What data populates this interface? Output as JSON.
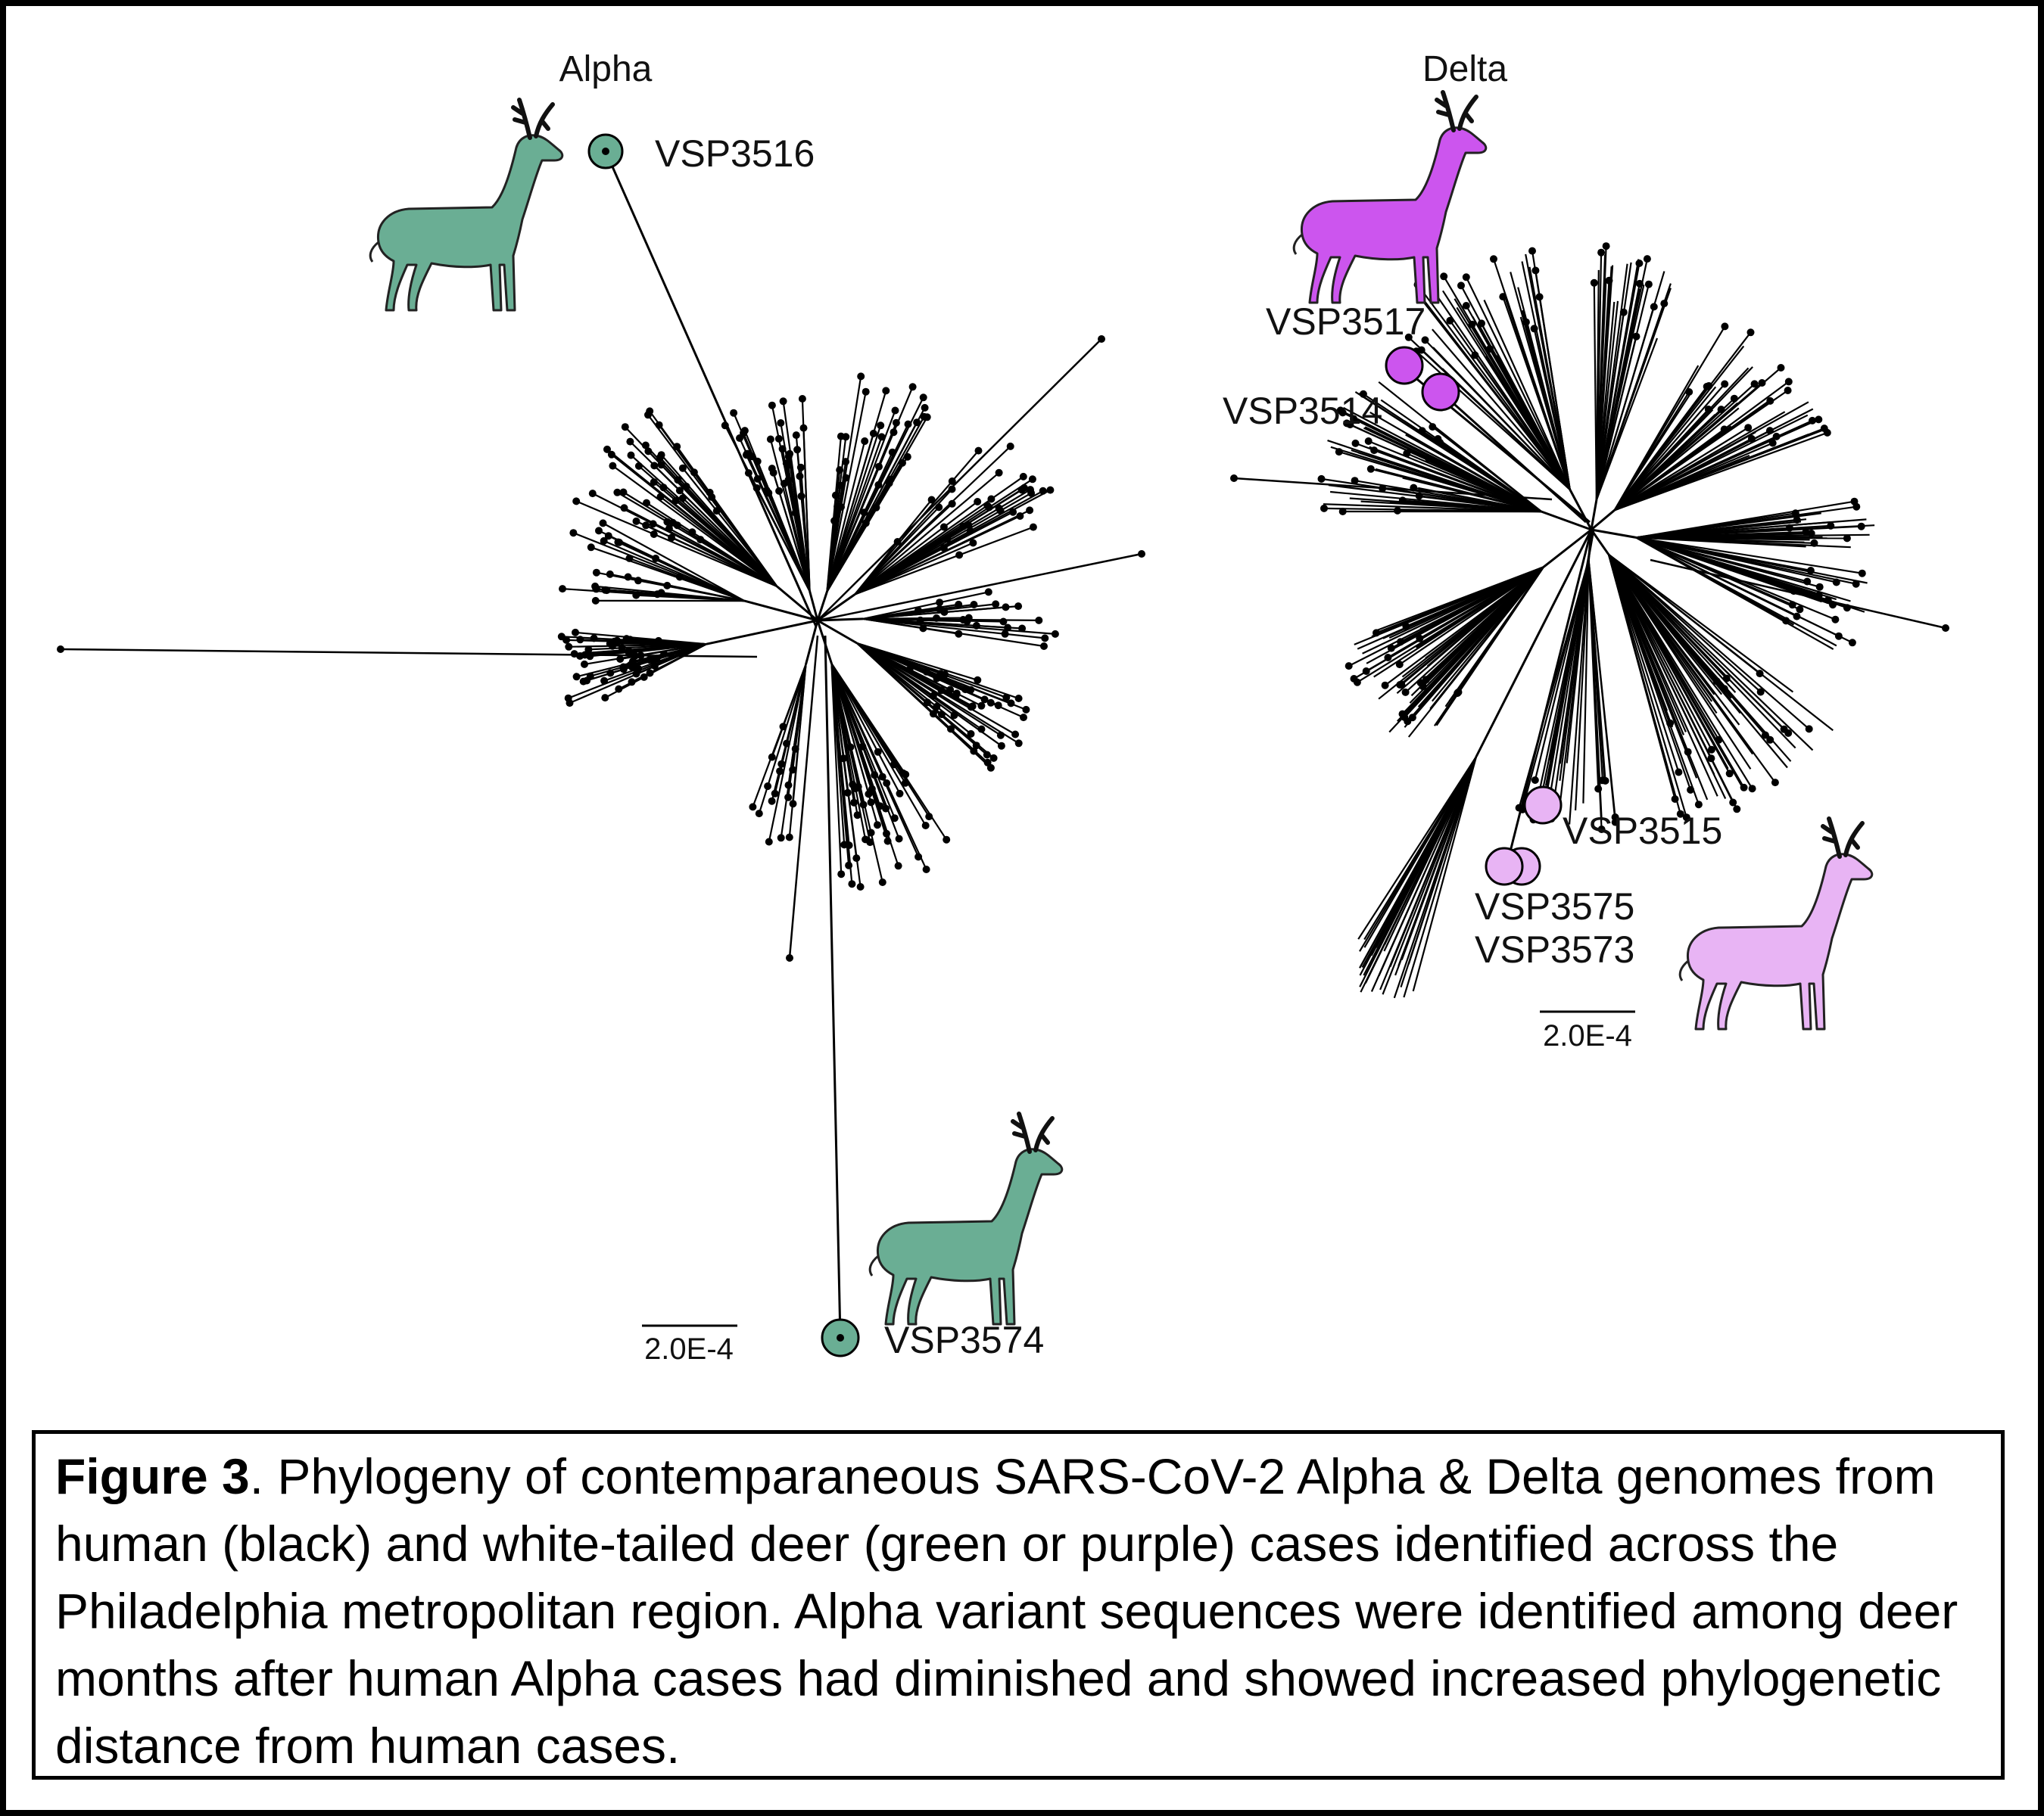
{
  "figure": {
    "panels": [
      {
        "id": "alpha",
        "title": "Alpha",
        "scale_label": "2.0E-4",
        "deer_color": "#6aae94",
        "deer_samples": [
          "VSP3516",
          "VSP3574"
        ]
      },
      {
        "id": "delta",
        "title": "Delta",
        "scale_label": "2.0E-4",
        "deer_colors": {
          "dark": "#cc55ee",
          "light": "#e8b4f4"
        },
        "deer_samples": [
          "VSP3517",
          "VSP3514",
          "VSP3515",
          "VSP3575",
          "VSP3573"
        ]
      }
    ],
    "human_color": "#000000"
  },
  "caption": {
    "label": "Figure 3",
    "text": ". Phylogeny of contemparaneous SARS-CoV-2 Alpha & Delta genomes from human (black) and white-tailed deer (green or purple) cases identified across the Philadelphia metropolitan region. Alpha variant sequences were identified among deer months after human Alpha cases had diminished and showed increased phylogenetic distance from human cases."
  }
}
